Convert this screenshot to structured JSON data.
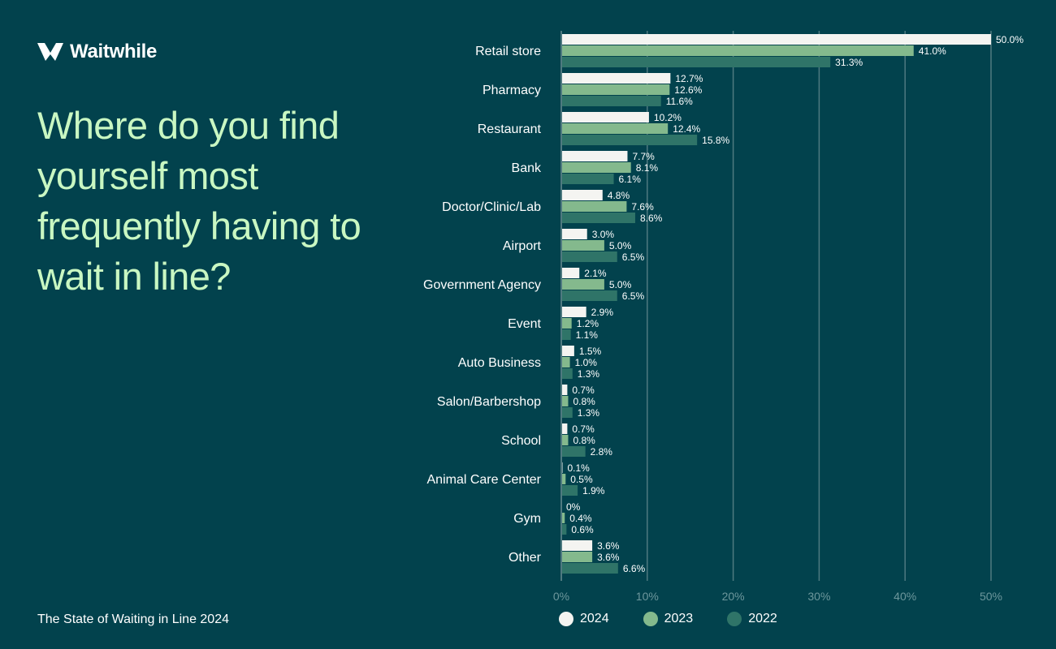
{
  "brand": {
    "name": "Waitwhile",
    "icon": "waitwhile-logo-icon"
  },
  "headline": "Where do you find yourself most frequently having to wait in line?",
  "footer": "The State of Waiting in Line 2024",
  "colors": {
    "background": "#02424d",
    "headline": "#c9f7c2",
    "grid": "#4f7a80",
    "axis_text": "#6d979c",
    "s2024": "#f4f4f1",
    "s2023": "#84b98d",
    "s2022": "#2f7468"
  },
  "chart_data": {
    "type": "bar",
    "orientation": "horizontal",
    "categories": [
      "Retail store",
      "Pharmacy",
      "Restaurant",
      "Bank",
      "Doctor/Clinic/Lab",
      "Airport",
      "Government Agency",
      "Event",
      "Auto Business",
      "Salon/Barbershop",
      "School",
      "Animal Care Center",
      "Gym",
      "Other"
    ],
    "series": [
      {
        "name": "2024",
        "values": [
          50.0,
          12.7,
          10.2,
          7.7,
          4.8,
          3.0,
          2.1,
          2.9,
          1.5,
          0.7,
          0.7,
          0.1,
          0,
          3.6
        ],
        "labels": [
          "50.0%",
          "12.7%",
          "10.2%",
          "7.7%",
          "4.8%",
          "3.0%",
          "2.1%",
          "2.9%",
          "1.5%",
          "0.7%",
          "0.7%",
          "0.1%",
          "0%",
          "3.6%"
        ]
      },
      {
        "name": "2023",
        "values": [
          41.0,
          12.6,
          12.4,
          8.1,
          7.6,
          5.0,
          5.0,
          1.2,
          1.0,
          0.8,
          0.8,
          0.5,
          0.4,
          3.6
        ],
        "labels": [
          "41.0%",
          "12.6%",
          "12.4%",
          "8.1%",
          "7.6%",
          "5.0%",
          "5.0%",
          "1.2%",
          "1.0%",
          "0.8%",
          "0.8%",
          "0.5%",
          "0.4%",
          "3.6%"
        ]
      },
      {
        "name": "2022",
        "values": [
          31.3,
          11.6,
          15.8,
          6.1,
          8.6,
          6.5,
          6.5,
          1.1,
          1.3,
          1.3,
          2.8,
          1.9,
          0.6,
          6.6
        ],
        "labels": [
          "31.3%",
          "11.6%",
          "15.8%",
          "6.1%",
          "8.6%",
          "6.5%",
          "6.5%",
          "1.1%",
          "1.3%",
          "1.3%",
          "2.8%",
          "1.9%",
          "0.6%",
          "6.6%"
        ]
      }
    ],
    "xlim": [
      0,
      50
    ],
    "xticks": [
      0,
      10,
      20,
      30,
      40,
      50
    ],
    "xtick_labels": [
      "0%",
      "10%",
      "20%",
      "30%",
      "40%",
      "50%"
    ],
    "grid": true,
    "legend_placement": "bottom"
  }
}
